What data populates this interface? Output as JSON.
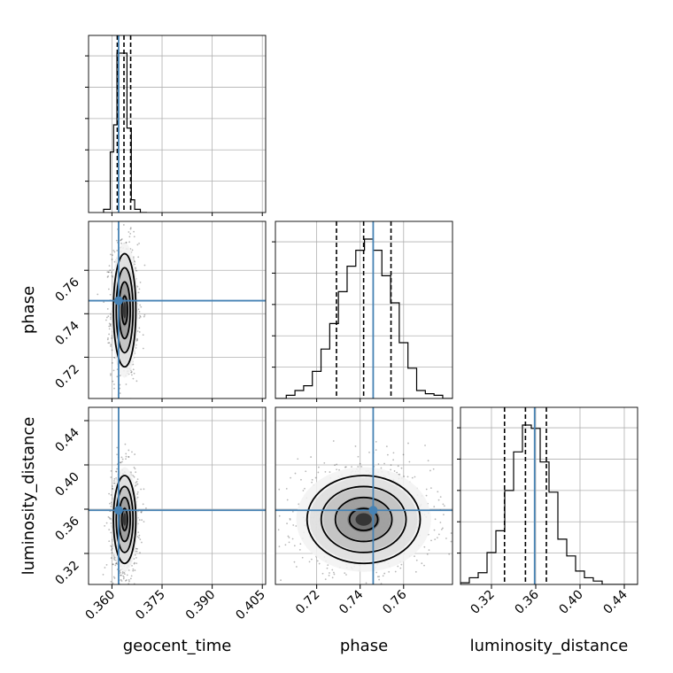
{
  "chart_data": {
    "type": "corner",
    "parameters": [
      "geocent_time",
      "phase",
      "luminosity_distance"
    ],
    "labels": {
      "geocent_time": "geocent_time",
      "phase": "phase",
      "luminosity_distance": "luminosity_distance"
    },
    "ranges": {
      "geocent_time": [
        0.353,
        0.406
      ],
      "phase": [
        0.701,
        0.7825
      ],
      "luminosity_distance": [
        0.292,
        0.452
      ]
    },
    "ticks": {
      "geocent_time": [
        "0.360",
        "0.375",
        "0.390",
        "0.405"
      ],
      "phase": [
        "0.72",
        "0.74",
        "0.76"
      ],
      "luminosity_distance": [
        "0.32",
        "0.36",
        "0.40",
        "0.44"
      ]
    },
    "truths": {
      "geocent_time": 0.362,
      "phase": 0.746,
      "luminosity_distance": 0.359
    },
    "quantiles": {
      "geocent_time": [
        0.3616,
        0.3636,
        0.3656
      ],
      "phase": [
        0.7291,
        0.7416,
        0.7542
      ],
      "luminosity_distance": [
        0.3318,
        0.3507,
        0.3696
      ]
    },
    "histograms": {
      "geocent_time": {
        "edges": [
          0.3575,
          0.3595,
          0.3605,
          0.3615,
          0.3625,
          0.3645,
          0.3658,
          0.3668,
          0.3685,
          0.3705
        ],
        "counts": [
          0.02,
          0.38,
          0.55,
          1.0,
          1.0,
          0.53,
          0.08,
          0.02,
          0.0
        ]
      },
      "phase": {
        "edges": [
          0.701,
          0.706,
          0.71,
          0.714,
          0.718,
          0.722,
          0.726,
          0.73,
          0.734,
          0.738,
          0.742,
          0.746,
          0.75,
          0.754,
          0.758,
          0.762,
          0.766,
          0.77,
          0.774,
          0.778,
          0.7825
        ],
        "counts": [
          0.0,
          0.02,
          0.05,
          0.08,
          0.17,
          0.31,
          0.47,
          0.67,
          0.83,
          0.93,
          1.0,
          0.93,
          0.77,
          0.6,
          0.35,
          0.19,
          0.05,
          0.03,
          0.02,
          0.0
        ]
      },
      "luminosity_distance": {
        "edges": [
          0.292,
          0.3,
          0.308,
          0.316,
          0.324,
          0.332,
          0.34,
          0.348,
          0.356,
          0.364,
          0.372,
          0.38,
          0.388,
          0.396,
          0.404,
          0.412,
          0.42,
          0.428,
          0.436,
          0.444,
          0.452
        ],
        "counts": [
          0.01,
          0.04,
          0.07,
          0.19,
          0.32,
          0.56,
          0.79,
          0.95,
          0.93,
          0.73,
          0.55,
          0.27,
          0.17,
          0.08,
          0.04,
          0.02,
          0.0,
          0.0,
          0.0,
          0.0
        ]
      }
    },
    "samples_2d": {
      "geocent_time|phase": {
        "center": [
          0.3638,
          0.7416
        ],
        "sigma": [
          0.0016,
          0.0124
        ]
      },
      "geocent_time|luminosity_distance": {
        "center": [
          0.3638,
          0.3507
        ],
        "sigma": [
          0.0016,
          0.0189
        ]
      },
      "phase|luminosity_distance": {
        "center": [
          0.7416,
          0.3507
        ],
        "sigma": [
          0.0124,
          0.0189
        ]
      }
    },
    "colors": {
      "truth": "#4682b4",
      "hist": "#000000",
      "grid": "#b0b0b0",
      "points": "#000000"
    },
    "grid": true
  }
}
